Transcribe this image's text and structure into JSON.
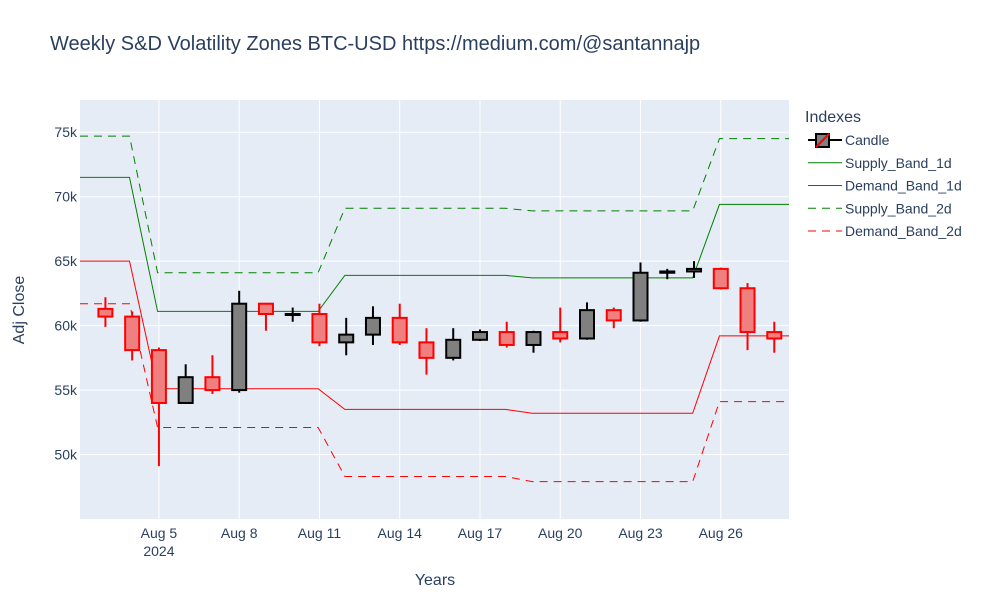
{
  "chart_data": {
    "type": "candlestick",
    "title": "Weekly S&D Volatility Zones BTC-USD https://medium.com/@santannajp",
    "xlabel": "Years",
    "ylabel": "Adj Close",
    "ylim": [
      45000,
      77500
    ],
    "grid": true,
    "x_ticks": [
      {
        "day": 5,
        "label": "Aug 5",
        "sub": "2024"
      },
      {
        "day": 8,
        "label": "Aug 8"
      },
      {
        "day": 11,
        "label": "Aug 11"
      },
      {
        "day": 14,
        "label": "Aug 14"
      },
      {
        "day": 17,
        "label": "Aug 17"
      },
      {
        "day": 20,
        "label": "Aug 20"
      },
      {
        "day": 23,
        "label": "Aug 23"
      },
      {
        "day": 26,
        "label": "Aug 26"
      }
    ],
    "y_ticks": [
      {
        "value": 50000,
        "label": "50k"
      },
      {
        "value": 55000,
        "label": "55k"
      },
      {
        "value": 60000,
        "label": "60k"
      },
      {
        "value": 65000,
        "label": "65k"
      },
      {
        "value": 70000,
        "label": "70k"
      },
      {
        "value": 75000,
        "label": "75k"
      }
    ],
    "x_range_days": [
      2.05,
      28.55
    ],
    "candles": [
      {
        "date": "Aug 3",
        "day": 3,
        "open": 61300,
        "high": 62200,
        "low": 59900,
        "close": 60700
      },
      {
        "date": "Aug 4",
        "day": 4,
        "open": 60700,
        "high": 61100,
        "low": 57300,
        "close": 58100
      },
      {
        "date": "Aug 5",
        "day": 5,
        "open": 58100,
        "high": 58300,
        "low": 49100,
        "close": 54000
      },
      {
        "date": "Aug 6",
        "day": 6,
        "open": 54000,
        "high": 57000,
        "low": 54000,
        "close": 56000
      },
      {
        "date": "Aug 7",
        "day": 7,
        "open": 56000,
        "high": 57700,
        "low": 54700,
        "close": 55000
      },
      {
        "date": "Aug 8",
        "day": 8,
        "open": 55000,
        "high": 62700,
        "low": 54800,
        "close": 61700
      },
      {
        "date": "Aug 9",
        "day": 9,
        "open": 61700,
        "high": 61700,
        "low": 59600,
        "close": 60900
      },
      {
        "date": "Aug 10",
        "day": 10,
        "open": 60900,
        "high": 61400,
        "low": 60300,
        "close": 60900
      },
      {
        "date": "Aug 11",
        "day": 11,
        "open": 60900,
        "high": 61700,
        "low": 58400,
        "close": 58700
      },
      {
        "date": "Aug 12",
        "day": 12,
        "open": 58700,
        "high": 60600,
        "low": 57700,
        "close": 59300
      },
      {
        "date": "Aug 13",
        "day": 13,
        "open": 59300,
        "high": 61500,
        "low": 58500,
        "close": 60600
      },
      {
        "date": "Aug 14",
        "day": 14,
        "open": 60600,
        "high": 61700,
        "low": 58500,
        "close": 58700
      },
      {
        "date": "Aug 15",
        "day": 15,
        "open": 58700,
        "high": 59800,
        "low": 56200,
        "close": 57500
      },
      {
        "date": "Aug 16",
        "day": 16,
        "open": 57500,
        "high": 59800,
        "low": 57300,
        "close": 58900
      },
      {
        "date": "Aug 17",
        "day": 17,
        "open": 58900,
        "high": 59700,
        "low": 58800,
        "close": 59500
      },
      {
        "date": "Aug 18",
        "day": 18,
        "open": 59500,
        "high": 60300,
        "low": 58300,
        "close": 58500
      },
      {
        "date": "Aug 19",
        "day": 19,
        "open": 58500,
        "high": 59600,
        "low": 57900,
        "close": 59500
      },
      {
        "date": "Aug 20",
        "day": 20,
        "open": 59500,
        "high": 61400,
        "low": 58700,
        "close": 59000
      },
      {
        "date": "Aug 21",
        "day": 21,
        "open": 59000,
        "high": 61800,
        "low": 58900,
        "close": 61200
      },
      {
        "date": "Aug 22",
        "day": 22,
        "open": 61200,
        "high": 61400,
        "low": 59800,
        "close": 60400
      },
      {
        "date": "Aug 23",
        "day": 23,
        "open": 60400,
        "high": 64900,
        "low": 60300,
        "close": 64100
      },
      {
        "date": "Aug 24",
        "day": 24,
        "open": 64100,
        "high": 64400,
        "low": 63600,
        "close": 64200
      },
      {
        "date": "Aug 25",
        "day": 25,
        "open": 64200,
        "high": 65000,
        "low": 63700,
        "close": 64400
      },
      {
        "date": "Aug 26",
        "day": 26,
        "open": 64400,
        "high": 64500,
        "low": 62800,
        "close": 62900
      },
      {
        "date": "Aug 27",
        "day": 27,
        "open": 62900,
        "high": 63300,
        "low": 58100,
        "close": 59500
      },
      {
        "date": "Aug 28",
        "day": 28,
        "open": 59500,
        "high": 60300,
        "low": 57900,
        "close": 59000
      }
    ],
    "series": [
      {
        "name": "Supply_Band_1d",
        "color": "#008000",
        "dash": "solid",
        "points": [
          [
            2.05,
            71500
          ],
          [
            3.9,
            71500
          ],
          [
            4.95,
            61100
          ],
          [
            10.95,
            61100
          ],
          [
            11.95,
            63900
          ],
          [
            17.95,
            63900
          ],
          [
            18.95,
            63700
          ],
          [
            24.95,
            63700
          ],
          [
            25.95,
            69400
          ],
          [
            28.55,
            69400
          ]
        ]
      },
      {
        "name": "Demand_Band_1d",
        "color": "#ff0000",
        "dash": "solid",
        "points": [
          [
            2.05,
            65000
          ],
          [
            3.9,
            65000
          ],
          [
            4.95,
            55100
          ],
          [
            10.95,
            55100
          ],
          [
            11.95,
            53500
          ],
          [
            17.95,
            53500
          ],
          [
            18.95,
            53200
          ],
          [
            24.95,
            53200
          ],
          [
            25.95,
            59200
          ],
          [
            28.55,
            59200
          ]
        ]
      },
      {
        "name": "Supply_Band_2d",
        "color": "#008000",
        "dash": "dashed",
        "points": [
          [
            2.05,
            74700
          ],
          [
            3.9,
            74700
          ],
          [
            4.95,
            64100
          ],
          [
            10.95,
            64100
          ],
          [
            11.95,
            69100
          ],
          [
            17.95,
            69100
          ],
          [
            18.95,
            68900
          ],
          [
            24.95,
            68900
          ],
          [
            25.95,
            74500
          ],
          [
            28.55,
            74500
          ]
        ]
      },
      {
        "name": "Demand_Band_2d",
        "color": "#ff0000",
        "dash": "dashed",
        "points": [
          [
            2.05,
            61700
          ],
          [
            3.9,
            61700
          ],
          [
            4.95,
            52100
          ],
          [
            10.95,
            52100
          ],
          [
            11.95,
            48300
          ],
          [
            17.95,
            48300
          ],
          [
            18.95,
            47900
          ],
          [
            24.95,
            47900
          ],
          [
            25.95,
            54100
          ],
          [
            28.55,
            54100
          ]
        ]
      }
    ],
    "legend": {
      "title": "Indexes",
      "placement": "right",
      "entries": [
        {
          "name": "Candle",
          "kind": "candle"
        },
        {
          "name": "Supply_Band_1d",
          "kind": "line",
          "color": "#008000",
          "dash": "solid"
        },
        {
          "name": "Demand_Band_1d",
          "kind": "line",
          "color": "#ff0000",
          "dash": "solid"
        },
        {
          "name": "Supply_Band_2d",
          "kind": "line",
          "color": "#008000",
          "dash": "dashed"
        },
        {
          "name": "Demand_Band_2d",
          "kind": "line",
          "color": "#ff0000",
          "dash": "dashed"
        }
      ]
    },
    "colors": {
      "plot_bg": "#e5ecf6",
      "grid": "#ffffff",
      "increasing_fill": "#808080",
      "increasing_line": "#000000",
      "decreasing_fill": "#f08080",
      "decreasing_line": "#ff0000"
    }
  }
}
